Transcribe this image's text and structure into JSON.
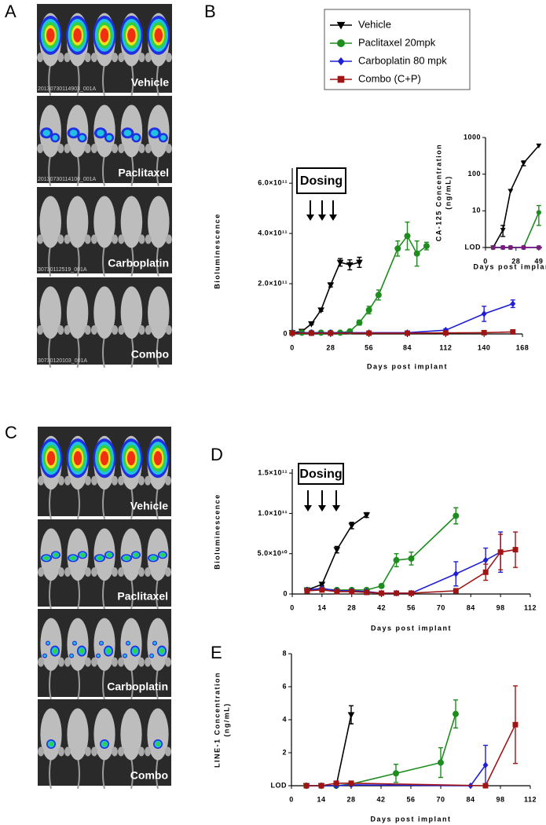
{
  "letters": [
    "A",
    "B",
    "C",
    "D",
    "E"
  ],
  "image_panels": [
    {
      "panels": [
        {
          "label": "Vehicle",
          "file_id": "20130730114903_001A"
        },
        {
          "label": "Paclitaxel",
          "file_id": "20130730114100_001A"
        },
        {
          "label": "Carboplatin",
          "file_id": "30730112519_001A"
        },
        {
          "label": "Combo",
          "file_id": "30730120103_001A"
        }
      ]
    },
    {
      "panels": [
        {
          "label": "Vehicle"
        },
        {
          "label": "Paclitaxel"
        },
        {
          "label": "Carboplatin"
        },
        {
          "label": "Combo"
        }
      ]
    }
  ],
  "legend": [
    {
      "name": "Vehicle",
      "color": "#000000",
      "marker": "triangle-down"
    },
    {
      "name": "Paclitaxel 20mpk",
      "color": "#1e8c1e",
      "marker": "circle"
    },
    {
      "name": "Carboplatin 80 mpk",
      "color": "#1f1fd6",
      "marker": "diamond"
    },
    {
      "name": "Combo (C+P)",
      "color": "#a01414",
      "marker": "square"
    }
  ],
  "chart_data": [
    {
      "type": "line",
      "annotation": "Dosing",
      "x_label": [
        "Days post implant"
      ],
      "y_label": [
        "Bioluminescence"
      ],
      "xlim": [
        0,
        168
      ],
      "xticks": [
        0,
        28,
        56,
        84,
        112,
        140,
        168
      ],
      "ylim": [
        0,
        660000000000
      ],
      "yticks": [
        0,
        {
          "value": 200000000000,
          "label": "2.0×10¹¹"
        },
        {
          "value": 400000000000,
          "label": "4.0×10¹¹"
        },
        {
          "value": 600000000000,
          "label": "6.0×10¹¹"
        }
      ],
      "series": [
        {
          "color": "#000000",
          "marker": "triangle-down",
          "x": [
            0,
            7,
            14,
            21,
            28,
            35,
            42,
            49
          ],
          "values": [
            5000000000,
            10000000000,
            40000000000,
            95000000000,
            195000000000,
            285000000000,
            275000000000,
            285000000000
          ],
          "errors": [
            0,
            0,
            3000000000,
            5000000000,
            8000000000,
            15000000000,
            20000000000,
            20000000000
          ]
        },
        {
          "color": "#1e8c1e",
          "marker": "circle",
          "x": [
            0,
            7,
            14,
            21,
            28,
            35,
            42,
            49,
            56,
            63,
            77,
            84,
            91,
            98
          ],
          "values": [
            5000000000,
            5000000000,
            5000000000,
            5000000000,
            5000000000,
            5000000000,
            10000000000,
            45000000000,
            95000000000,
            155000000000,
            340000000000,
            390000000000,
            320000000000,
            350000000000
          ],
          "errors": [
            0,
            0,
            0,
            0,
            0,
            0,
            3000000000,
            10000000000,
            15000000000,
            20000000000,
            30000000000,
            55000000000,
            50000000000,
            15000000000
          ]
        },
        {
          "color": "#1f1fd6",
          "marker": "diamond",
          "x": [
            0,
            14,
            28,
            56,
            84,
            112,
            140,
            161
          ],
          "values": [
            5000000000,
            5000000000,
            5000000000,
            5000000000,
            5000000000,
            15000000000,
            80000000000,
            120000000000
          ],
          "errors": [
            0,
            0,
            0,
            0,
            0,
            5000000000,
            30000000000,
            15000000000
          ]
        },
        {
          "color": "#a01414",
          "marker": "square",
          "x": [
            0,
            14,
            28,
            56,
            84,
            112,
            140,
            161
          ],
          "values": [
            3000000000,
            3000000000,
            3000000000,
            3000000000,
            3000000000,
            4000000000,
            5000000000,
            8000000000
          ],
          "errors": [
            0,
            0,
            0,
            0,
            0,
            0,
            0,
            2000000000
          ]
        }
      ]
    },
    {
      "type": "line",
      "log_scale": true,
      "x_label": [
        "Days post implant"
      ],
      "y_label": [
        "CA-125 Concentration",
        "(ng/mL)"
      ],
      "xlim": [
        0,
        52
      ],
      "xticks": [
        0,
        28,
        49
      ],
      "ylim": [
        1,
        1000
      ],
      "yticks": [
        {
          "value": 1,
          "label": "LOD"
        },
        10,
        100,
        1000
      ],
      "series": [
        {
          "color": "#000000",
          "marker": "triangle-down",
          "x": [
            7,
            16,
            23,
            35,
            49
          ],
          "values": [
            1,
            3,
            35,
            200,
            600
          ],
          "errors": [
            0,
            1,
            0,
            30,
            0
          ]
        },
        {
          "color": "#1e8c1e",
          "marker": "circle",
          "x": [
            7,
            16,
            23,
            35,
            49
          ],
          "values": [
            1,
            1,
            1,
            1,
            9
          ],
          "errors": [
            0,
            0,
            0,
            0,
            5
          ]
        },
        {
          "color": "#1f1fd6",
          "marker": "diamond",
          "x": [
            7,
            16,
            23,
            35,
            49
          ],
          "values": [
            1,
            1,
            1,
            1,
            1
          ],
          "errors": [
            0,
            0,
            0,
            0,
            0
          ]
        },
        {
          "color": "#7a1a7a",
          "marker": "square",
          "x": [
            7,
            16,
            23,
            35,
            49
          ],
          "values": [
            1,
            1,
            1,
            1,
            1
          ],
          "errors": [
            0,
            0,
            0,
            0,
            0
          ]
        }
      ]
    },
    {
      "type": "line",
      "annotation": "Dosing",
      "x_label": [
        "Days post implant"
      ],
      "y_label": [
        "Bioluminescence"
      ],
      "xlim": [
        0,
        112
      ],
      "xticks": [
        0,
        14,
        28,
        42,
        56,
        70,
        84,
        98,
        112
      ],
      "ylim": [
        0,
        155000000000
      ],
      "yticks": [
        0,
        {
          "value": 50000000000,
          "label": "5.0×10¹⁰"
        },
        {
          "value": 100000000000,
          "label": "1.0×10¹¹"
        },
        {
          "value": 150000000000,
          "label": "1.5×10¹¹"
        }
      ],
      "series": [
        {
          "color": "#000000",
          "marker": "triangle-down",
          "x": [
            7,
            14,
            21,
            28,
            35
          ],
          "values": [
            5000000000,
            12000000000,
            55000000000,
            85000000000,
            98000000000
          ],
          "errors": [
            0,
            2000000000,
            4000000000,
            4000000000,
            3000000000
          ]
        },
        {
          "color": "#1e8c1e",
          "marker": "circle",
          "x": [
            7,
            14,
            21,
            28,
            35,
            42,
            49,
            56,
            77
          ],
          "values": [
            5000000000,
            6000000000,
            5000000000,
            5000000000,
            5000000000,
            10000000000,
            42000000000,
            44000000000,
            97000000000
          ],
          "errors": [
            0,
            0,
            0,
            0,
            0,
            0,
            8000000000,
            8000000000,
            10000000000
          ]
        },
        {
          "color": "#1f1fd6",
          "marker": "diamond",
          "x": [
            7,
            14,
            21,
            28,
            35,
            42,
            49,
            56,
            77,
            91,
            98
          ],
          "values": [
            5000000000,
            7000000000,
            4000000000,
            4000000000,
            3000000000,
            1000000000,
            1000000000,
            1000000000,
            25000000000,
            42000000000,
            52000000000
          ],
          "errors": [
            0,
            0,
            0,
            0,
            0,
            0,
            0,
            0,
            15000000000,
            15000000000,
            25000000000
          ]
        },
        {
          "color": "#a01414",
          "marker": "square",
          "x": [
            7,
            14,
            21,
            28,
            35,
            42,
            49,
            56,
            77,
            91,
            98,
            105
          ],
          "values": [
            4000000000,
            5000000000,
            3000000000,
            3000000000,
            2000000000,
            1000000000,
            1000000000,
            1000000000,
            4000000000,
            27000000000,
            52000000000,
            55000000000
          ],
          "errors": [
            0,
            0,
            0,
            0,
            0,
            0,
            0,
            0,
            0,
            10000000000,
            22000000000,
            22000000000
          ]
        }
      ]
    },
    {
      "type": "line",
      "x_label": [
        "Days post implant"
      ],
      "y_label": [
        "LINE-1 Concentration",
        "(ng/mL)"
      ],
      "xlim": [
        0,
        112
      ],
      "xticks": [
        0,
        14,
        28,
        42,
        56,
        70,
        84,
        98,
        112
      ],
      "ylim": [
        0,
        8
      ],
      "yticks": [
        {
          "value": 0,
          "label": "LOD"
        },
        2,
        4,
        6,
        8
      ],
      "series": [
        {
          "color": "#000000",
          "marker": "triangle-down",
          "x": [
            7,
            14,
            21,
            28
          ],
          "values": [
            0,
            0,
            0,
            4.3
          ],
          "errors": [
            0,
            0,
            0,
            0.55
          ]
        },
        {
          "color": "#1e8c1e",
          "marker": "circle",
          "x": [
            7,
            14,
            21,
            28,
            49,
            70,
            77
          ],
          "values": [
            0,
            0,
            0,
            0.1,
            0.75,
            1.4,
            4.35
          ],
          "errors": [
            0,
            0,
            0,
            0,
            0.55,
            0.9,
            0.85
          ]
        },
        {
          "color": "#1f1fd6",
          "marker": "diamond",
          "x": [
            7,
            14,
            21,
            28,
            84,
            91
          ],
          "values": [
            0,
            0,
            0,
            0.05,
            0,
            1.25
          ],
          "errors": [
            0,
            0,
            0,
            0,
            0,
            1.2
          ]
        },
        {
          "color": "#a01414",
          "marker": "square",
          "x": [
            7,
            14,
            21,
            28,
            91,
            105
          ],
          "values": [
            0,
            0,
            0.15,
            0.15,
            0,
            3.7
          ],
          "errors": [
            0,
            0,
            0,
            0,
            0,
            2.35
          ]
        }
      ]
    }
  ]
}
